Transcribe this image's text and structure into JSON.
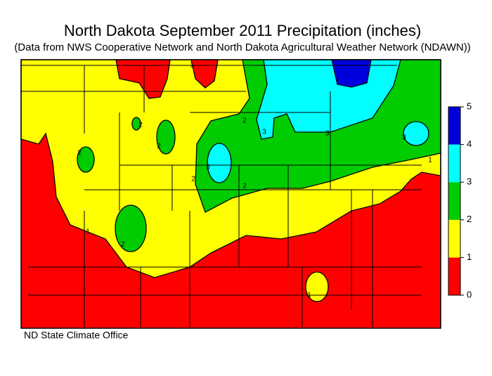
{
  "title": "North Dakota September 2011 Precipitation (inches)",
  "subtitle": "(Data from NWS Cooperative Network and North Dakota Agricultural Weather Network (NDAWN))",
  "legend": {
    "ticks": [
      0,
      1,
      2,
      3,
      4,
      5
    ],
    "colors": [
      "#ff0000",
      "#ffff00",
      "#00cc00",
      "#00ffff",
      "#0000dd"
    ]
  },
  "contour_labels": [
    1,
    1,
    1,
    2,
    2,
    2,
    2,
    2,
    2,
    2,
    3,
    3,
    3,
    3,
    1
  ],
  "credit": "ND State Climate Office"
}
